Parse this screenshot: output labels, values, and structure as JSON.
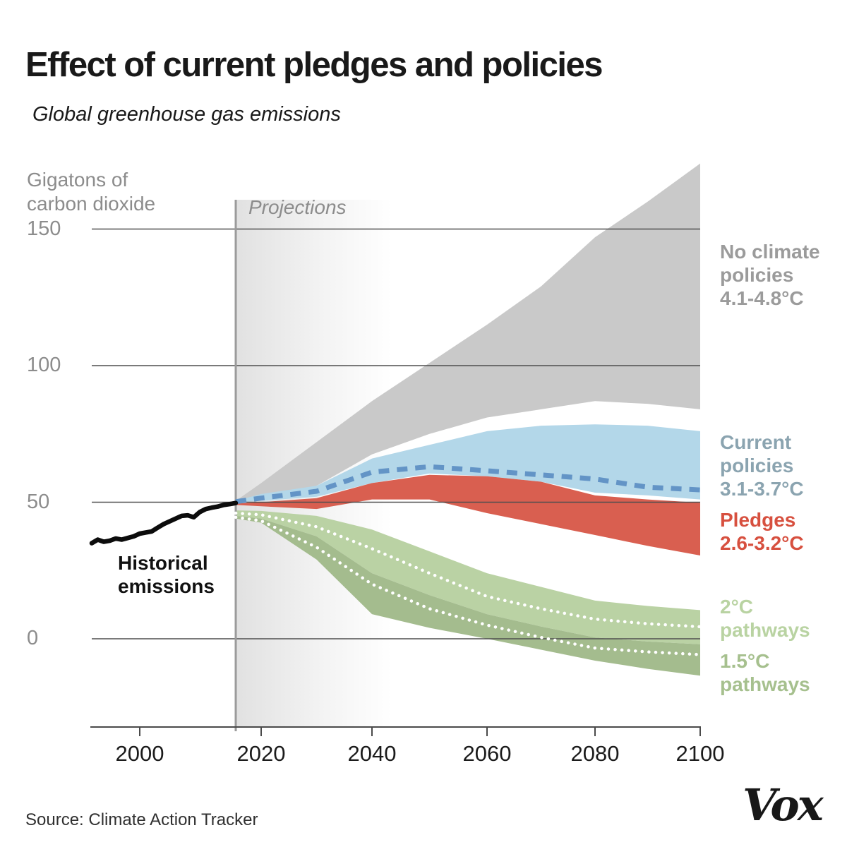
{
  "header": {
    "title": "Effect of current pledges and policies",
    "subtitle": "Global greenhouse gas emissions"
  },
  "axis": {
    "y_unit_label": "Gigatons of\ncarbon dioxide",
    "projections_label": "Projections",
    "y_ticks": [
      {
        "value": 150,
        "label": "150"
      },
      {
        "value": 100,
        "label": "100"
      },
      {
        "value": 50,
        "label": "50"
      },
      {
        "value": 0,
        "label": "0"
      }
    ],
    "x_ticks": [
      {
        "value": 2000,
        "label": "2000"
      },
      {
        "value": 2020,
        "label": "2020"
      },
      {
        "value": 2040,
        "label": "2040"
      },
      {
        "value": 2060,
        "label": "2060"
      },
      {
        "value": 2080,
        "label": "2080"
      },
      {
        "value": 2100,
        "label": "2100"
      }
    ]
  },
  "labels": {
    "no_policies": {
      "text": "No climate\npolicies\n4.1-4.8°C",
      "color": "#9b9b9b"
    },
    "current": {
      "text": "Current\npolicies\n3.1-3.7°C",
      "color": "#8ba4b0"
    },
    "pledges": {
      "text": "Pledges\n2.6-3.2°C",
      "color": "#d7503f"
    },
    "two_c": {
      "text": "2°C\npathways",
      "color": "#b9d3a2"
    },
    "one_five_c": {
      "text": "1.5°C\npathways",
      "color": "#a6c08e"
    },
    "historical": {
      "text": "Historical\nemissions",
      "color": "#111111"
    }
  },
  "footer": {
    "source": "Source: Climate Action Tracker",
    "logo": "Vox"
  },
  "chart_data": {
    "type": "area",
    "title": "Effect of current pledges and policies",
    "subtitle": "Global greenhouse gas emissions",
    "ylabel": "Gigatons of carbon dioxide",
    "unit": "GtCO2",
    "ylim": [
      -25,
      185
    ],
    "xlim": [
      1992,
      2100
    ],
    "yticks": [
      0,
      50,
      100,
      150
    ],
    "xticks": [
      2000,
      2020,
      2040,
      2060,
      2080,
      2100
    ],
    "grid": "horizontal",
    "legend_position": "right-margin",
    "projection_start_year": 2016,
    "historical": {
      "name": "Historical emissions",
      "color": "#0c0c0c",
      "years": [
        1992,
        1993,
        1994,
        1995,
        1996,
        1997,
        1998,
        1999,
        2000,
        2001,
        2002,
        2003,
        2004,
        2005,
        2006,
        2007,
        2008,
        2009,
        2010,
        2011,
        2012,
        2013,
        2014,
        2015,
        2016
      ],
      "values": [
        35,
        36.3,
        35.5,
        35.9,
        36.7,
        36.3,
        36.9,
        37.5,
        38.5,
        38.9,
        39.3,
        40.7,
        42,
        43,
        44,
        45,
        45.2,
        44.5,
        46.4,
        47.5,
        48,
        48.4,
        49,
        49.3,
        49.7
      ]
    },
    "projection_years": [
      2016,
      2020,
      2030,
      2040,
      2050,
      2060,
      2070,
      2080,
      2090,
      2100
    ],
    "bands": [
      {
        "id": "no_policies",
        "label": "No climate policies",
        "warming_range": "4.1-4.8°C",
        "color": "#c9c9c9",
        "hi": [
          50.5,
          57,
          72,
          87,
          101,
          115,
          129,
          147,
          160,
          174
        ],
        "lo": [
          50,
          52,
          56,
          67.5,
          75,
          81,
          84,
          87,
          86,
          84
        ]
      },
      {
        "id": "current_policies",
        "label": "Current policies",
        "warming_range": "3.1-3.7°C",
        "color": "#b3d7e9",
        "hi": [
          50.5,
          53,
          56,
          66,
          71,
          76,
          78,
          78.5,
          78,
          76
        ],
        "lo": [
          50,
          50.5,
          52,
          57,
          60.5,
          59.5,
          57.5,
          53.5,
          52.5,
          51
        ],
        "mid": [
          50.2,
          51.5,
          54,
          61,
          63,
          61.5,
          60,
          58.5,
          55.5,
          54.5
        ],
        "mid_style": "dashed",
        "mid_color": "#6394c6"
      },
      {
        "id": "pledges",
        "label": "Pledges",
        "warming_range": "2.6-3.2°C",
        "color": "#d95f50",
        "hi": [
          49.5,
          50,
          51.5,
          57,
          60,
          59.5,
          57.5,
          52.5,
          51,
          49.8
        ],
        "lo": [
          49,
          48.5,
          47.5,
          51,
          51,
          46,
          42,
          38,
          34,
          30.5
        ]
      },
      {
        "id": "two_c_pathways",
        "label": "2°C pathways",
        "warming_range": "2°C",
        "color": "#bad2a4",
        "hi": [
          47,
          46.8,
          45,
          40,
          32,
          24,
          19,
          14,
          12,
          10.5
        ],
        "lo": [
          45,
          44,
          37.5,
          24,
          16,
          9,
          4.5,
          0.5,
          -1,
          -2
        ],
        "mid": [
          46,
          45.4,
          41,
          33,
          24,
          15.5,
          11,
          7.2,
          5.5,
          4.4
        ],
        "mid_style": "dotted",
        "mid_color": "#ffffff"
      },
      {
        "id": "one_five_c_pathways",
        "label": "1.5°C pathways",
        "warming_range": "1.5°C",
        "color": "#a4bc8e",
        "hi": [
          45,
          44,
          37.5,
          24,
          16,
          9,
          4.5,
          0.5,
          -1,
          -2
        ],
        "lo": [
          44,
          42.5,
          29,
          9,
          4,
          0,
          -4,
          -8,
          -11,
          -13.5
        ],
        "mid": [
          44.5,
          43.2,
          33.5,
          20,
          11,
          5,
          0.5,
          -3.4,
          -4.8,
          -5.8
        ],
        "mid_style": "dotted",
        "mid_color": "#ffffff"
      }
    ]
  }
}
